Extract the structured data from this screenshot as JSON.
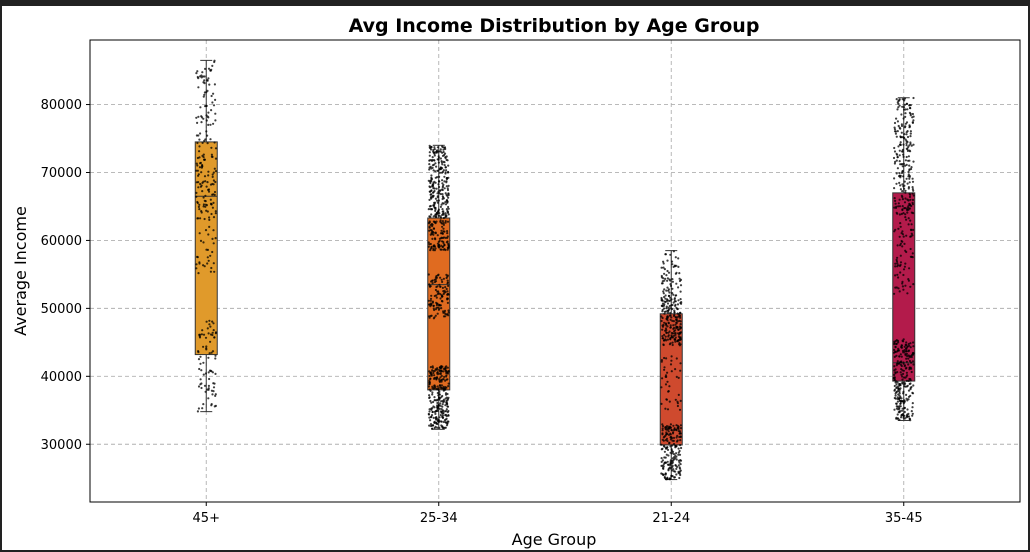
{
  "chart_data": {
    "type": "box",
    "title": "Avg Income Distribution by Age Group",
    "xlabel": "Age Group",
    "ylabel": "Average Income",
    "ylim": [
      21500,
      89500
    ],
    "yticks": [
      30000,
      40000,
      50000,
      60000,
      70000,
      80000
    ],
    "ytick_labels": [
      "30000",
      "40000",
      "50000",
      "60000",
      "70000",
      "80000"
    ],
    "grid": true,
    "categories": [
      "45+",
      "25-34",
      "21-24",
      "35-45"
    ],
    "boxes": [
      {
        "category": "45+",
        "color": "#E09A2B",
        "whislo": 34800,
        "q1": 43200,
        "med": 66500,
        "q3": 74500,
        "whishi": 86500,
        "clusters": [
          [
            34800,
            44500,
            55
          ],
          [
            45000,
            48500,
            25
          ],
          [
            55000,
            62000,
            30
          ],
          [
            63000,
            76000,
            110
          ],
          [
            76000,
            86500,
            60
          ]
        ]
      },
      {
        "category": "25-34",
        "color": "#E06B20",
        "whislo": 32200,
        "q1": 38000,
        "med": 53500,
        "q3": 63300,
        "whishi": 74000,
        "clusters": [
          [
            32200,
            41500,
            280
          ],
          [
            48500,
            55000,
            120
          ],
          [
            58500,
            74000,
            360
          ]
        ]
      },
      {
        "category": "21-24",
        "color": "#CF4A2E",
        "whislo": 24800,
        "q1": 29900,
        "med": 29900,
        "q3": 49200,
        "whishi": 58500,
        "clusters": [
          [
            24800,
            33000,
            200
          ],
          [
            35000,
            43000,
            40
          ],
          [
            44500,
            52000,
            200
          ],
          [
            52000,
            58500,
            60
          ]
        ]
      },
      {
        "category": "35-45",
        "color": "#B31B4B",
        "whislo": 33500,
        "q1": 39300,
        "med": 42000,
        "q3": 67000,
        "whishi": 81000,
        "clusters": [
          [
            33500,
            45500,
            260
          ],
          [
            52000,
            60000,
            50
          ],
          [
            60500,
            81000,
            250
          ]
        ]
      }
    ]
  }
}
